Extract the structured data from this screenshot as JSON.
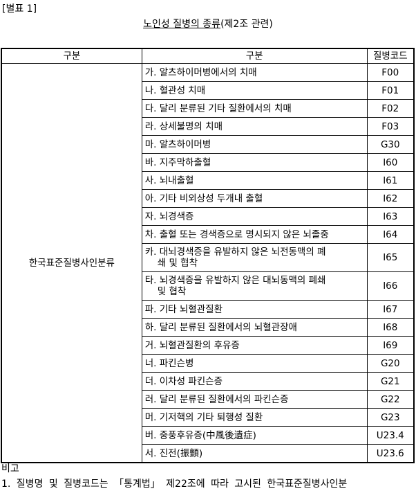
{
  "doc_label": "[별표 1]",
  "title": {
    "underlined": "노인성 질병의 종류",
    "suffix": "(제2조 관련)"
  },
  "table": {
    "headers": [
      "구분",
      "구분",
      "질병코드"
    ],
    "category": "한국표준질병사인분류",
    "rows": [
      {
        "name": "가. 알츠하이머병에서의 치매",
        "code": "F00"
      },
      {
        "name": "나. 혈관성 치매",
        "code": "F01"
      },
      {
        "name": "다. 달리 분류된 기타 질환에서의 치매",
        "code": "F02"
      },
      {
        "name": "라. 상세불명의 치매",
        "code": "F03"
      },
      {
        "name": "마. 알츠하이머병",
        "code": "G30"
      },
      {
        "name": "바. 지주막하출혈",
        "code": "I60"
      },
      {
        "name": "사. 뇌내출혈",
        "code": "I61"
      },
      {
        "name": "아. 기타 비외상성 두개내 출혈",
        "code": "I62"
      },
      {
        "name": "자. 뇌경색증",
        "code": "I63"
      },
      {
        "name": "차. 출혈 또는 경색증으로 명시되지 않은 뇌졸중",
        "code": "I64"
      },
      {
        "name": "카. 대뇌경색증을 유발하지 않은 뇌전동맥의 폐",
        "name2": "쇄 및 협착",
        "code": "I65"
      },
      {
        "name": "타. 뇌경색증을 유발하지 않은 대뇌동맥의 폐쇄",
        "name2": "및 협착",
        "code": "I66"
      },
      {
        "name": "파. 기타 뇌혈관질환",
        "code": "I67"
      },
      {
        "name": "하. 달리 분류된 질환에서의 뇌혈관장애",
        "code": "I68"
      },
      {
        "name": "거. 뇌혈관질환의 후유증",
        "code": "I69"
      },
      {
        "name": "너. 파킨슨병",
        "code": "G20"
      },
      {
        "name": "더. 이차성 파킨슨증",
        "code": "G21"
      },
      {
        "name": "러. 달리 분류된 질환에서의 파킨슨증",
        "code": "G22"
      },
      {
        "name": "머. 기저핵의 기타 퇴행성 질환",
        "code": "G23"
      },
      {
        "name": "버. 중풍후유증(中風後遺症)",
        "code": "U23.4"
      },
      {
        "name": "서. 진전(振顫)",
        "code": "U23.6"
      }
    ]
  },
  "remarks_label": "비고",
  "note_1": "1. 질병명 및 질병코드는 「통계법」 제22조에 따라 고시된 한국표준질병사인분"
}
